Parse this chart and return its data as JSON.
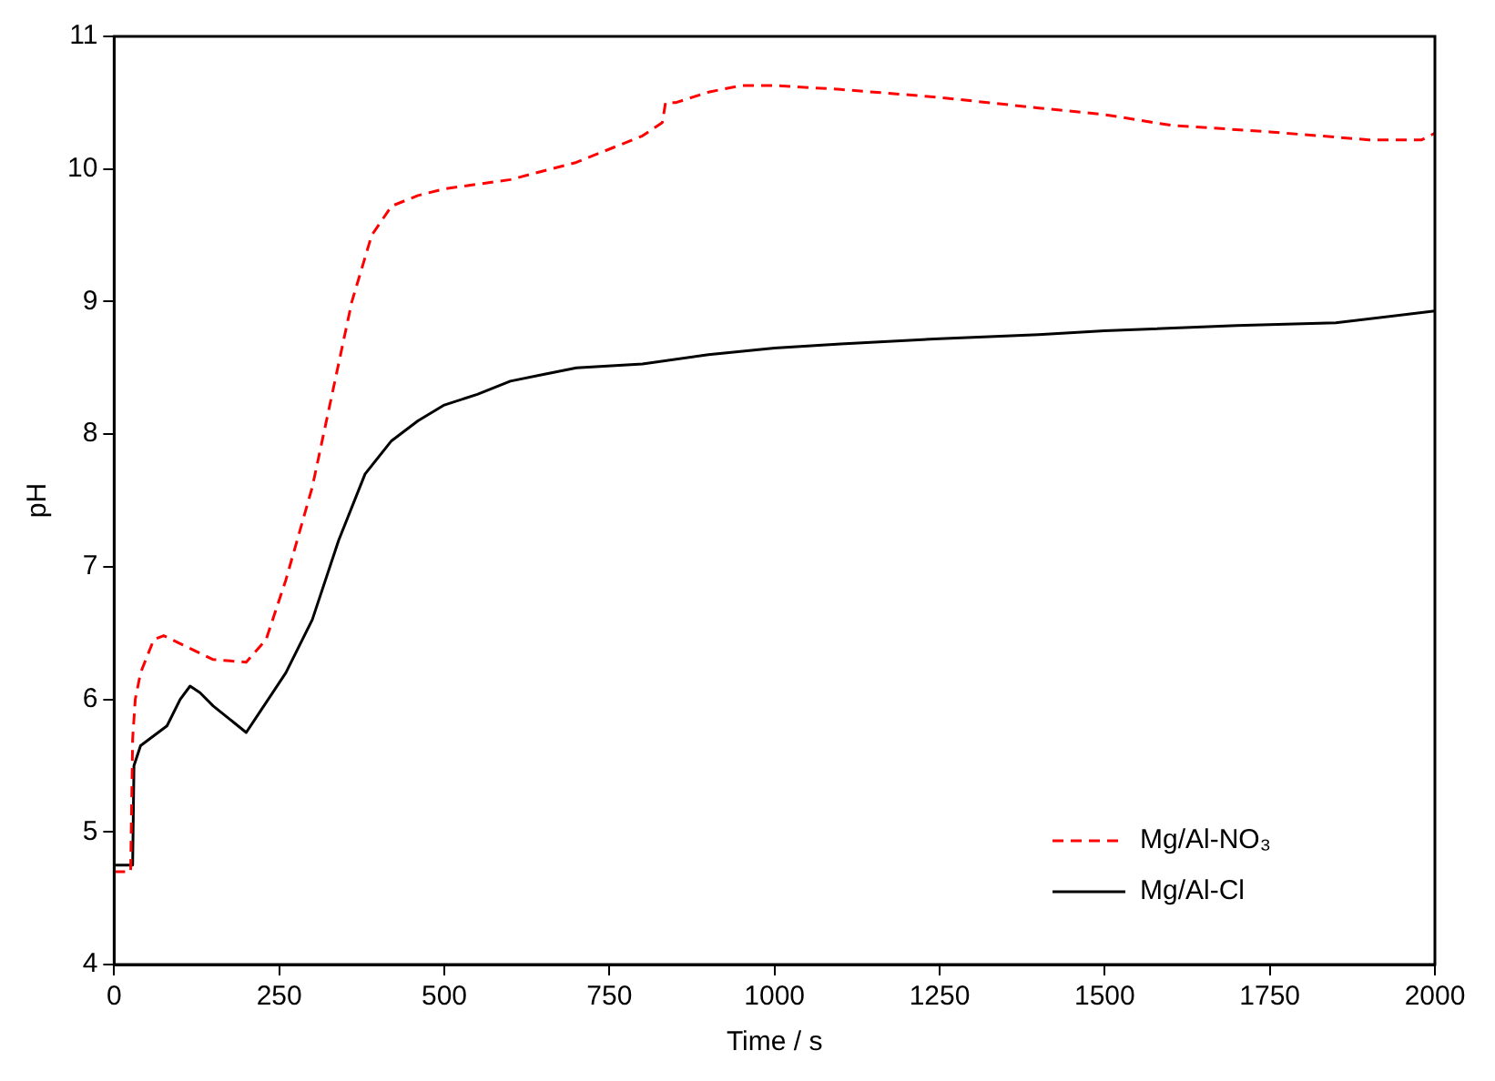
{
  "chart_data": {
    "type": "line",
    "xlabel": "Time / s",
    "ylabel": "pH",
    "xlim": [
      0,
      2000
    ],
    "ylim": [
      4,
      11
    ],
    "xticks": [
      0,
      250,
      500,
      750,
      1000,
      1250,
      1500,
      1750,
      2000
    ],
    "yticks": [
      4,
      5,
      6,
      7,
      8,
      9,
      10,
      11
    ],
    "grid": false,
    "legend": "bottom right",
    "marker": "none",
    "series": [
      {
        "name": "Mg/Al-NO₃",
        "color": "#ff0000",
        "line_style": "dashed",
        "x": [
          0,
          25,
          28,
          32,
          40,
          60,
          75,
          100,
          150,
          200,
          230,
          260,
          300,
          330,
          360,
          390,
          420,
          460,
          500,
          600,
          700,
          800,
          830,
          835,
          850,
          900,
          950,
          1000,
          1100,
          1250,
          1400,
          1500,
          1600,
          1750,
          1900,
          1980,
          2000
        ],
        "values": [
          4.7,
          4.7,
          5.7,
          6.0,
          6.2,
          6.45,
          6.48,
          6.42,
          6.3,
          6.28,
          6.45,
          6.9,
          7.6,
          8.3,
          9.0,
          9.5,
          9.72,
          9.8,
          9.85,
          9.92,
          10.05,
          10.25,
          10.35,
          10.5,
          10.5,
          10.58,
          10.63,
          10.63,
          10.6,
          10.54,
          10.46,
          10.41,
          10.33,
          10.28,
          10.22,
          10.22,
          10.27
        ]
      },
      {
        "name": "Mg/Al-Cl",
        "color": "#000000",
        "line_style": "solid",
        "x": [
          0,
          28,
          30,
          40,
          80,
          100,
          115,
          130,
          150,
          200,
          220,
          260,
          300,
          340,
          380,
          420,
          460,
          500,
          550,
          600,
          650,
          700,
          800,
          900,
          1000,
          1100,
          1250,
          1400,
          1500,
          1700,
          1850,
          2000
        ],
        "values": [
          4.75,
          4.75,
          5.5,
          5.65,
          5.8,
          6.0,
          6.1,
          6.05,
          5.95,
          5.75,
          5.9,
          6.2,
          6.6,
          7.2,
          7.7,
          7.95,
          8.1,
          8.22,
          8.3,
          8.4,
          8.45,
          8.5,
          8.53,
          8.6,
          8.65,
          8.68,
          8.72,
          8.75,
          8.78,
          8.82,
          8.84,
          8.93
        ]
      }
    ]
  }
}
